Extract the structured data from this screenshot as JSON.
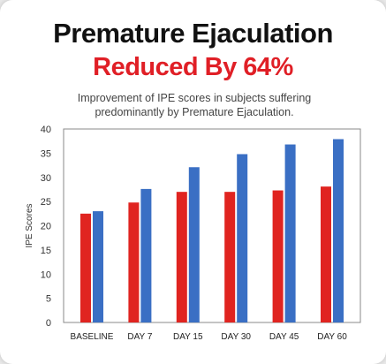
{
  "header": {
    "title_line1": "Premature Ejaculation",
    "title_line2": "Reduced By 64%",
    "subtitle": "Improvement of IPE scores in subjects suffering predominantly by Premature Ejaculation."
  },
  "colors": {
    "accent_red": "#e01f26",
    "bar_blue": "#3a6fc4",
    "bar_red": "#e02420"
  },
  "chart_data": {
    "type": "bar",
    "title": "",
    "xlabel": "",
    "ylabel": "IPE Scores",
    "ylim": [
      0,
      40
    ],
    "yticks": [
      0,
      5,
      10,
      15,
      20,
      25,
      30,
      35,
      40
    ],
    "grid": false,
    "legend": "none",
    "categories": [
      "BASELINE",
      "DAY 7",
      "DAY 15",
      "DAY 30",
      "DAY 45",
      "DAY 60"
    ],
    "series": [
      {
        "color": "#e02420",
        "values": [
          22.5,
          24.8,
          27.0,
          27.0,
          27.3,
          28.1
        ]
      },
      {
        "color": "#3a6fc4",
        "values": [
          23.0,
          27.6,
          32.1,
          34.8,
          36.8,
          37.9
        ]
      }
    ]
  }
}
